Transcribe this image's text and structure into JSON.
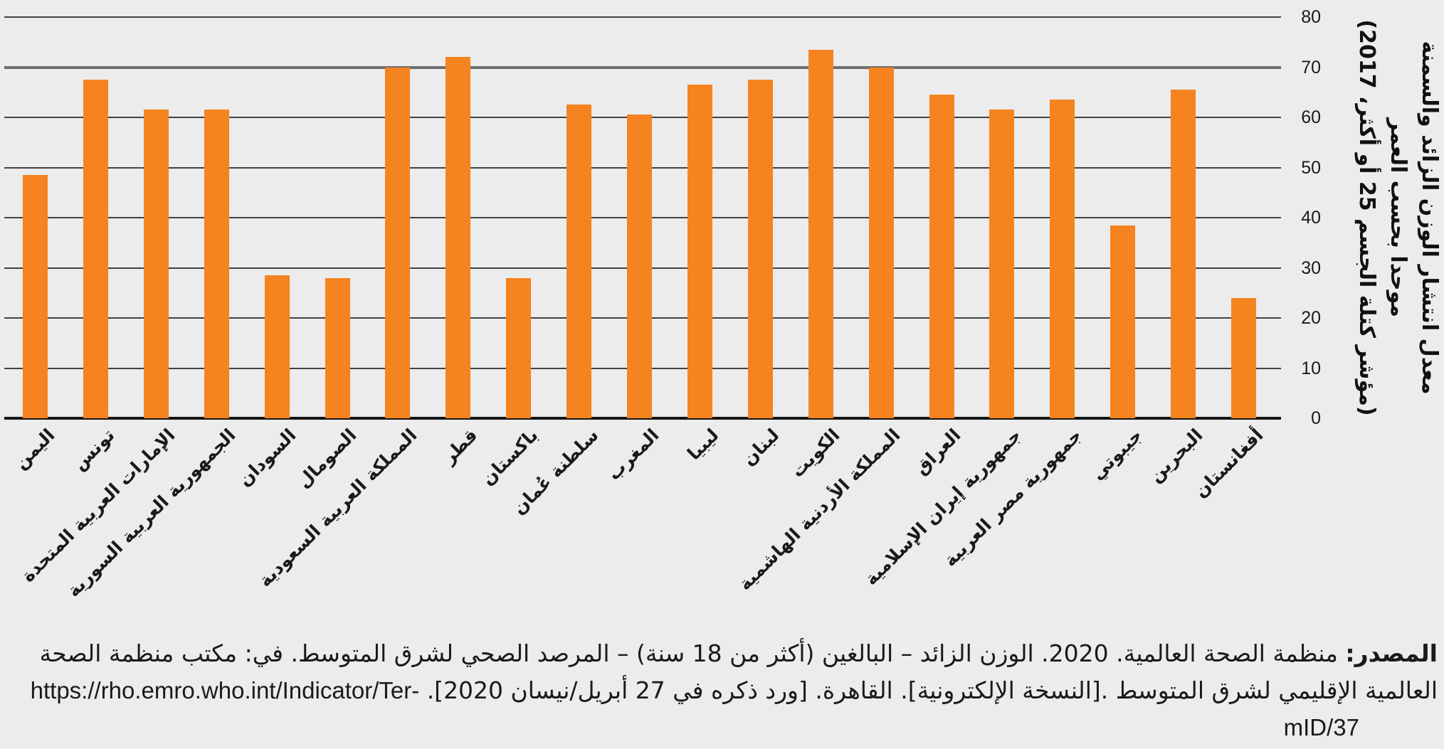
{
  "chart_data": {
    "type": "bar",
    "y_title_lines": [
      "معدل انتشار الوزن الزائد والسمنة",
      "موحدا بحسب العمر",
      "(مؤشر كتلة الجسم 25 أو أكثر، 2017)"
    ],
    "categories": [
      "اليمن",
      "تونس",
      "الإمارات العربية المتحدة",
      "الجمهورية العربية السورية",
      "السودان",
      "الصومال",
      "المملكة العربية السعودية",
      "قطر",
      "باكستان",
      "سلطنة عُمان",
      "المغرب",
      "ليبيا",
      "لبنان",
      "الكويت",
      "المملكة الأردنية الهاشمية",
      "العراق",
      "جمهورية إيران الإسلامية",
      "جمهورية مصر العربية",
      "جيبوتي",
      "البحرين",
      "أفغانستان"
    ],
    "values": [
      48.5,
      67.5,
      61.5,
      61.5,
      28.5,
      28,
      70,
      72,
      28,
      62.5,
      60.5,
      66.5,
      67.5,
      73.5,
      70,
      64.5,
      61.5,
      63.5,
      38.5,
      65.5,
      24
    ],
    "y_ticks": [
      0,
      10,
      20,
      30,
      40,
      50,
      60,
      70,
      80
    ],
    "ylim": [
      0,
      80
    ],
    "grid": "horizontal",
    "emphasized_gridline": 70,
    "legend": null,
    "bar_color": "#F5831F",
    "background_color": "#ECECEC"
  },
  "source": {
    "label": "المصدر:",
    "line1_rest": " منظمة الصحة العالمية. 2020. الوزن الزائد – البالغين (أكثر من 18 سنة) – المرصد الصحي لشرق المتوسط. في: مكتب منظمة الصحة",
    "line2_ar": "العالمية الإقليمي لشرق المتوسط .[النسخة الإلكترونية]. القاهرة. [ورد ذكره في 27 أبريل/نيسان 2020]. ",
    "line2_url": "https://rho.emro.who.int/Indicator/Ter-",
    "line3": "mID/37"
  }
}
